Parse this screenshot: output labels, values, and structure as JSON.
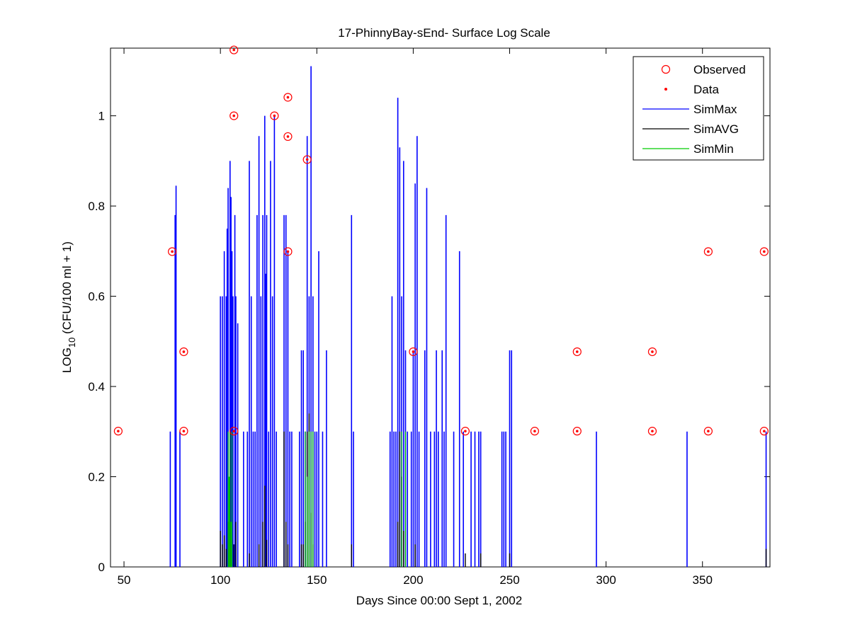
{
  "chart_data": {
    "type": "line",
    "title": "17-PhinnyBay-sEnd- Surface Log Scale",
    "xlabel": "Days Since 00:00 Sept 1, 2002",
    "ylabel_main": "LOG",
    "ylabel_sub": "10",
    "ylabel_rest": " (CFU/100 ml + 1)",
    "xlim": [
      43,
      385
    ],
    "ylim": [
      0,
      1.15
    ],
    "xticks": [
      50,
      100,
      150,
      200,
      250,
      300,
      350
    ],
    "yticks": [
      0,
      0.2,
      0.4,
      0.6,
      0.8,
      1
    ],
    "ytick_labels": [
      "0",
      "0.2",
      "0.4",
      "0.6",
      "0.8",
      "1"
    ],
    "legend_position": "top-right",
    "legend": [
      {
        "name": "Observed",
        "kind": "circle",
        "color": "#ff0000"
      },
      {
        "name": "Data",
        "kind": "dot",
        "color": "#ff0000"
      },
      {
        "name": "SimMax",
        "kind": "line",
        "color": "#0000ff"
      },
      {
        "name": "SimAVG",
        "kind": "line",
        "color": "#000000"
      },
      {
        "name": "SimMin",
        "kind": "line",
        "color": "#00cc00"
      }
    ],
    "observed": [
      [
        47,
        0.301
      ],
      [
        75,
        0.699
      ],
      [
        81,
        0.477
      ],
      [
        81,
        0.301
      ],
      [
        107,
        1.146
      ],
      [
        107,
        1.0
      ],
      [
        107,
        0.301
      ],
      [
        128,
        1.0
      ],
      [
        135,
        1.041
      ],
      [
        135,
        0.954
      ],
      [
        135,
        0.699
      ],
      [
        145,
        0.903
      ],
      [
        200,
        0.477
      ],
      [
        227,
        0.301
      ],
      [
        263,
        0.301
      ],
      [
        285,
        0.477
      ],
      [
        285,
        0.301
      ],
      [
        324,
        0.477
      ],
      [
        324,
        0.301
      ],
      [
        353,
        0.699
      ],
      [
        353,
        0.301
      ],
      [
        382,
        0.699
      ],
      [
        382,
        0.301
      ]
    ],
    "simmax": [
      [
        74,
        0.3
      ],
      [
        76.5,
        0.78
      ],
      [
        77,
        0.845
      ],
      [
        79,
        0.3
      ],
      [
        100,
        0.6
      ],
      [
        101,
        0.6
      ],
      [
        102,
        0.7
      ],
      [
        103,
        0.6
      ],
      [
        103.5,
        0.75
      ],
      [
        104,
        0.84
      ],
      [
        105,
        0.9
      ],
      [
        105.5,
        0.82
      ],
      [
        106,
        0.7
      ],
      [
        106.5,
        0.6
      ],
      [
        107.5,
        0.78
      ],
      [
        108,
        0.6
      ],
      [
        109,
        0.54
      ],
      [
        112,
        0.3
      ],
      [
        114,
        0.3
      ],
      [
        115,
        0.9
      ],
      [
        116,
        0.6
      ],
      [
        117,
        0.3
      ],
      [
        118,
        0.3
      ],
      [
        119,
        0.78
      ],
      [
        120,
        0.955
      ],
      [
        121,
        0.6
      ],
      [
        122,
        0.78
      ],
      [
        123,
        1.0
      ],
      [
        123.5,
        0.65
      ],
      [
        124,
        0.78
      ],
      [
        125,
        0.3
      ],
      [
        126,
        0.9
      ],
      [
        127,
        0.6
      ],
      [
        128,
        1.0
      ],
      [
        129,
        0.3
      ],
      [
        133,
        0.78
      ],
      [
        134,
        0.78
      ],
      [
        135,
        0.7
      ],
      [
        136,
        0.3
      ],
      [
        137,
        0.3
      ],
      [
        141,
        0.3
      ],
      [
        142,
        0.48
      ],
      [
        143,
        0.48
      ],
      [
        144,
        0.3
      ],
      [
        145,
        0.955
      ],
      [
        146,
        0.6
      ],
      [
        147,
        1.11
      ],
      [
        148,
        0.6
      ],
      [
        149,
        0.3
      ],
      [
        150,
        0.3
      ],
      [
        151,
        0.7
      ],
      [
        153,
        0.3
      ],
      [
        155,
        0.48
      ],
      [
        168,
        0.78
      ],
      [
        169,
        0.3
      ],
      [
        188,
        0.3
      ],
      [
        189,
        0.6
      ],
      [
        190,
        0.3
      ],
      [
        191,
        0.3
      ],
      [
        192,
        1.04
      ],
      [
        193,
        0.93
      ],
      [
        194,
        0.6
      ],
      [
        195,
        0.9
      ],
      [
        196,
        0.48
      ],
      [
        197,
        0.3
      ],
      [
        199,
        0.3
      ],
      [
        200,
        0.48
      ],
      [
        201,
        0.85
      ],
      [
        202,
        0.955
      ],
      [
        203,
        0.3
      ],
      [
        206,
        0.48
      ],
      [
        207,
        0.84
      ],
      [
        209,
        0.3
      ],
      [
        211,
        0.3
      ],
      [
        212,
        0.48
      ],
      [
        213,
        0.3
      ],
      [
        215,
        0.48
      ],
      [
        216,
        0.3
      ],
      [
        217,
        0.78
      ],
      [
        221,
        0.3
      ],
      [
        224,
        0.7
      ],
      [
        226,
        0.3
      ],
      [
        230,
        0.3
      ],
      [
        232,
        0.3
      ],
      [
        234,
        0.3
      ],
      [
        235,
        0.3
      ],
      [
        246,
        0.3
      ],
      [
        247,
        0.3
      ],
      [
        248,
        0.3
      ],
      [
        250,
        0.48
      ],
      [
        251,
        0.48
      ],
      [
        295,
        0.3
      ],
      [
        342,
        0.3
      ],
      [
        383,
        0.3
      ]
    ],
    "simavg": [
      [
        100,
        0.08
      ],
      [
        101,
        0.05
      ],
      [
        102,
        0.07
      ],
      [
        103,
        0.04
      ],
      [
        104,
        0.1
      ],
      [
        105,
        0.3
      ],
      [
        106,
        0.06
      ],
      [
        107,
        0.05
      ],
      [
        108,
        0.1
      ],
      [
        115,
        0.03
      ],
      [
        120,
        0.05
      ],
      [
        122,
        0.1
      ],
      [
        123,
        0.18
      ],
      [
        124,
        0.06
      ],
      [
        133,
        0.3
      ],
      [
        134,
        0.1
      ],
      [
        135,
        0.05
      ],
      [
        142,
        0.05
      ],
      [
        143,
        0.05
      ],
      [
        144,
        0.1
      ],
      [
        145,
        0.3
      ],
      [
        146,
        0.34
      ],
      [
        147,
        0.12
      ],
      [
        148,
        0.05
      ],
      [
        168,
        0.05
      ],
      [
        192,
        0.1
      ],
      [
        193,
        0.3
      ],
      [
        194,
        0.2
      ],
      [
        195,
        0.08
      ],
      [
        201,
        0.05
      ],
      [
        227,
        0.03
      ],
      [
        235,
        0.03
      ],
      [
        250,
        0.03
      ],
      [
        383,
        0.04
      ]
    ],
    "simmin": [
      [
        104,
        0.3
      ],
      [
        104.5,
        0.2
      ],
      [
        105,
        0.3
      ],
      [
        105.5,
        0.1
      ],
      [
        106,
        0.3
      ],
      [
        144,
        0.3
      ],
      [
        145,
        0.2
      ],
      [
        146,
        0.3
      ],
      [
        147,
        0.3
      ],
      [
        148,
        0.3
      ],
      [
        194,
        0.3
      ],
      [
        196,
        0.3
      ]
    ]
  }
}
